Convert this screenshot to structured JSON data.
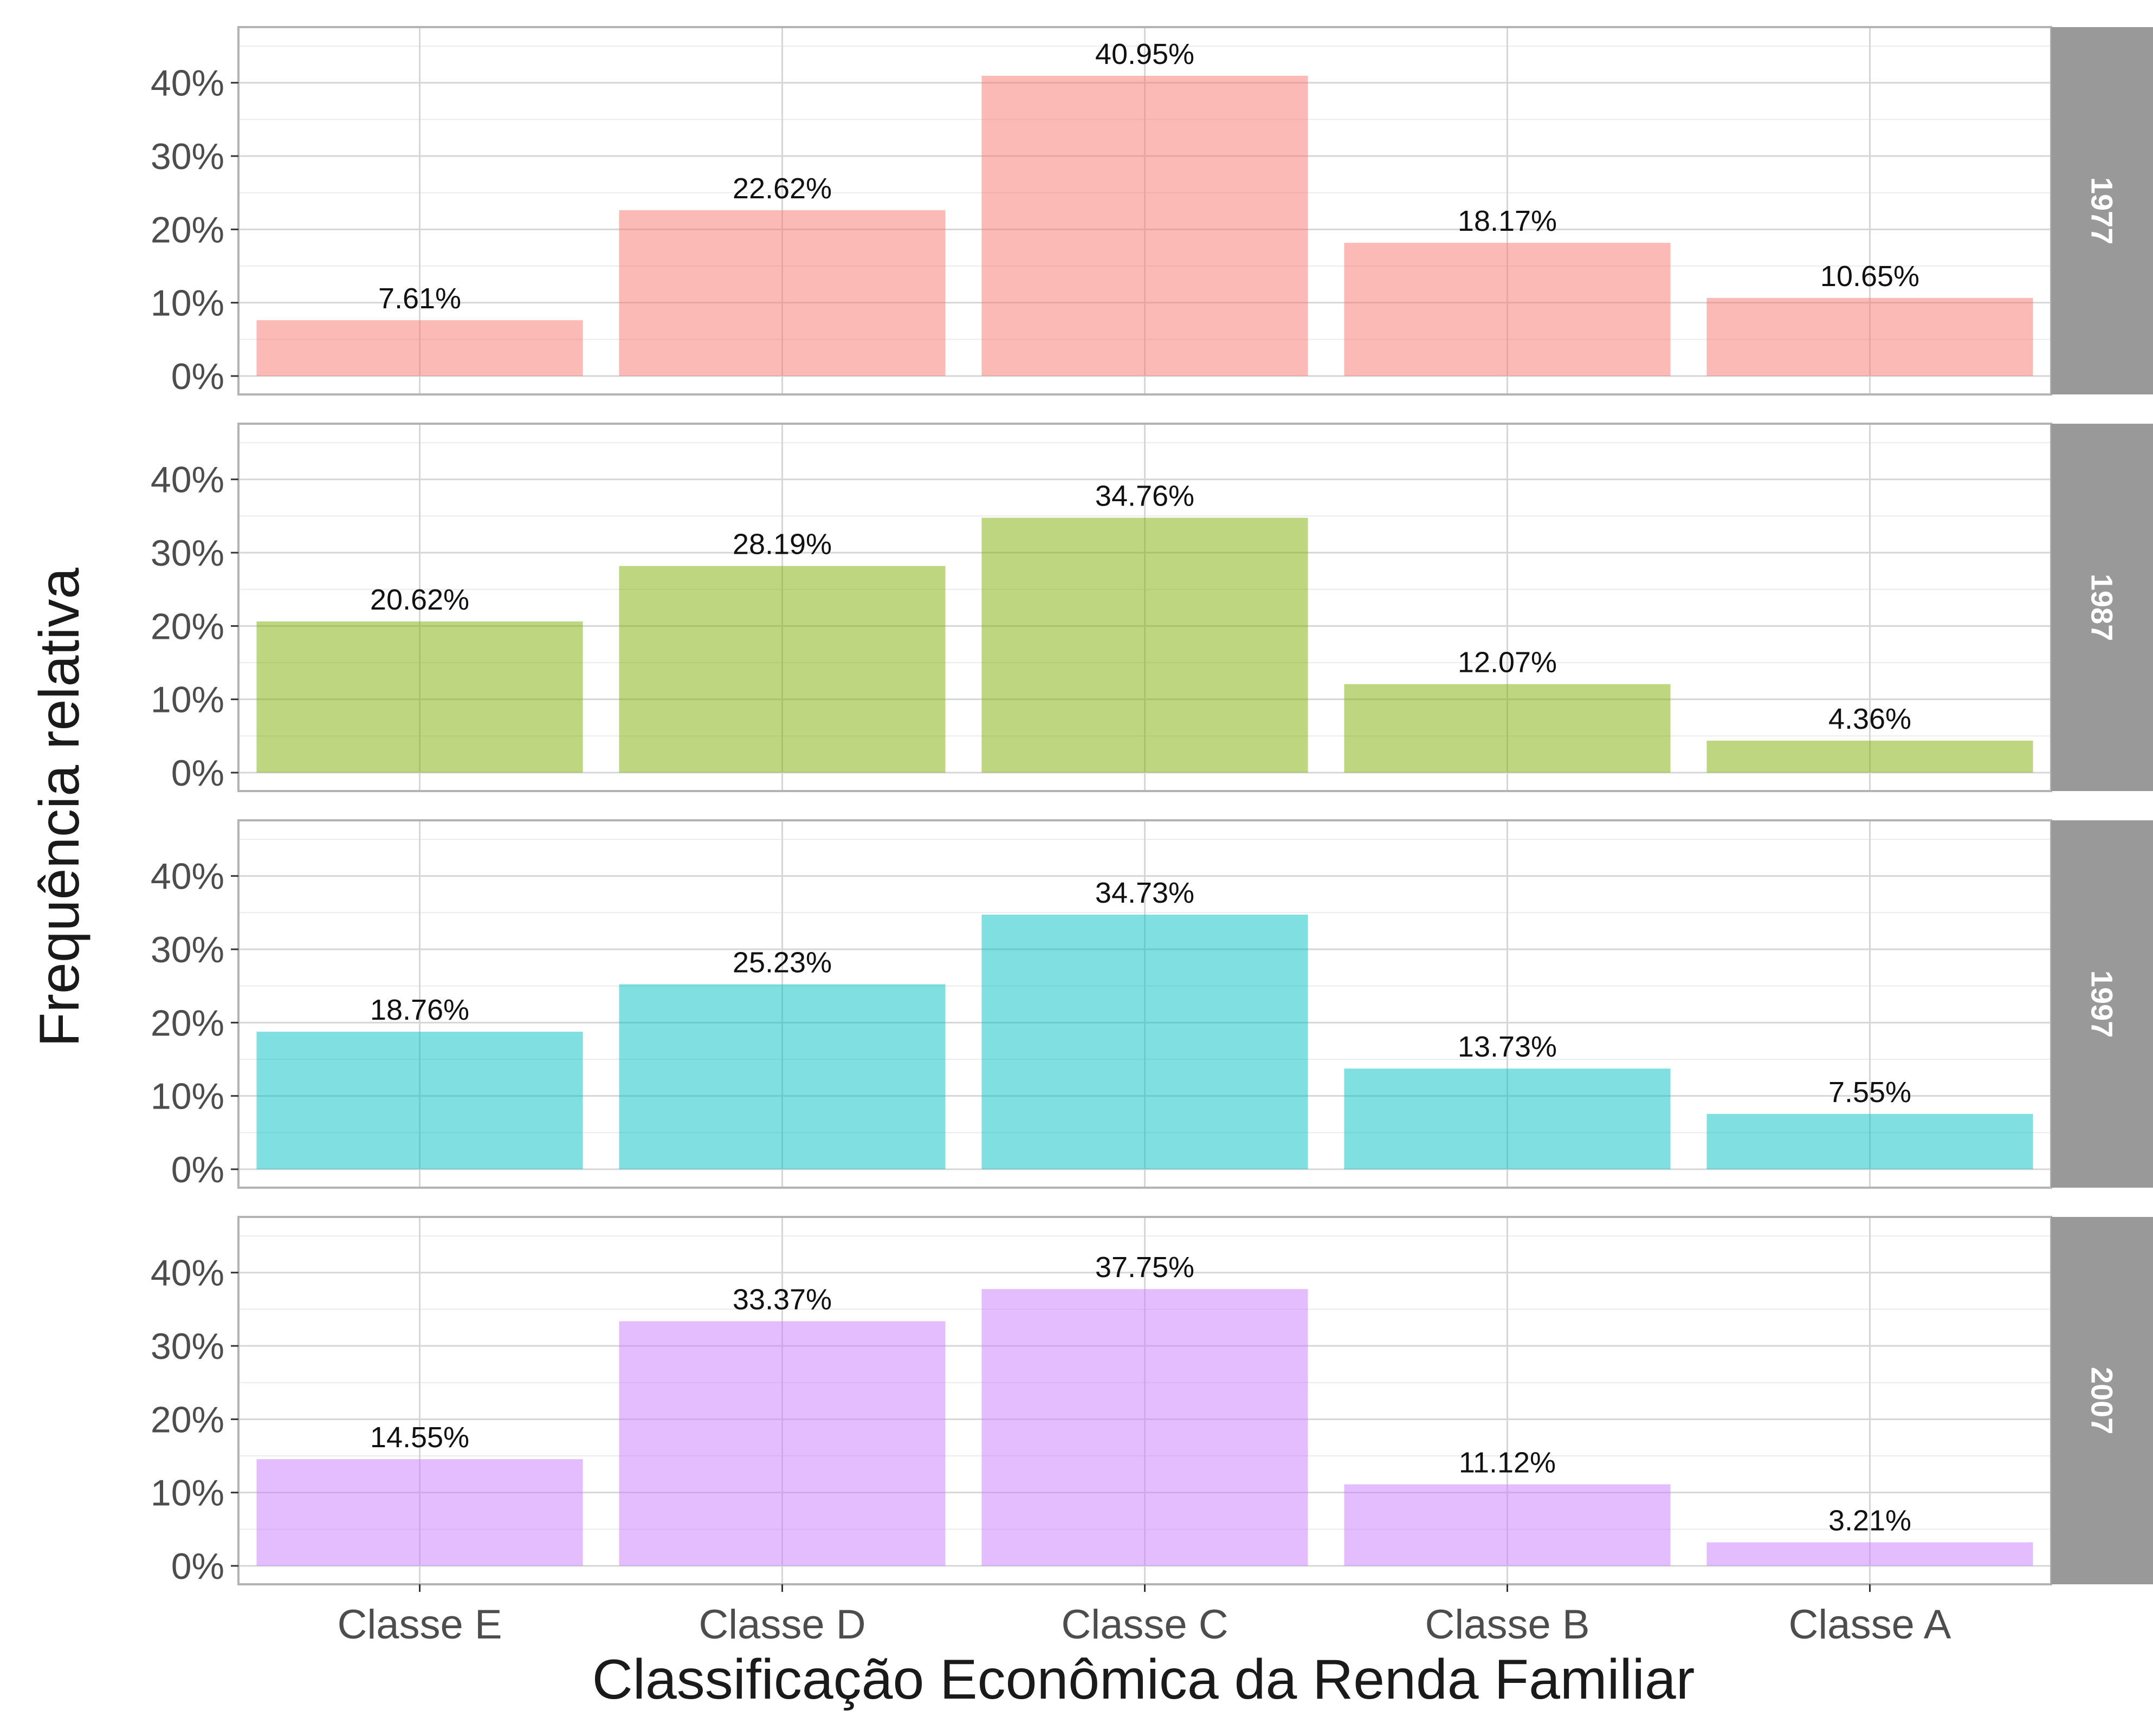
{
  "chart_data": {
    "type": "bar",
    "xlabel": "Classificação Econômica da Renda Familiar",
    "ylabel": "Frequência relativa",
    "categories": [
      "Classe E",
      "Classe D",
      "Classe C",
      "Classe B",
      "Classe A"
    ],
    "y_ticks": [
      "0%",
      "10%",
      "20%",
      "30%",
      "40%"
    ],
    "ylim": [
      0,
      47
    ],
    "grid": true,
    "legend": "none",
    "facet_strip_color": "#999999",
    "panels": [
      {
        "name": "1977",
        "color": "#F8766D",
        "values": [
          7.61,
          22.62,
          40.95,
          18.17,
          10.65
        ],
        "labels": [
          "7.61%",
          "22.62%",
          "40.95%",
          "18.17%",
          "10.65%"
        ]
      },
      {
        "name": "1987",
        "color": "#7CAE00",
        "values": [
          20.62,
          28.19,
          34.76,
          12.07,
          4.36
        ],
        "labels": [
          "20.62%",
          "28.19%",
          "34.76%",
          "12.07%",
          "4.36%"
        ]
      },
      {
        "name": "1997",
        "color": "#00BFC4",
        "values": [
          18.76,
          25.23,
          34.73,
          13.73,
          7.55
        ],
        "labels": [
          "18.76%",
          "25.23%",
          "34.73%",
          "13.73%",
          "7.55%"
        ]
      },
      {
        "name": "2007",
        "color": "#C77CFF",
        "values": [
          14.55,
          33.37,
          37.75,
          11.12,
          3.21
        ],
        "labels": [
          "14.55%",
          "33.37%",
          "37.75%",
          "11.12%",
          "3.21%"
        ]
      }
    ]
  }
}
